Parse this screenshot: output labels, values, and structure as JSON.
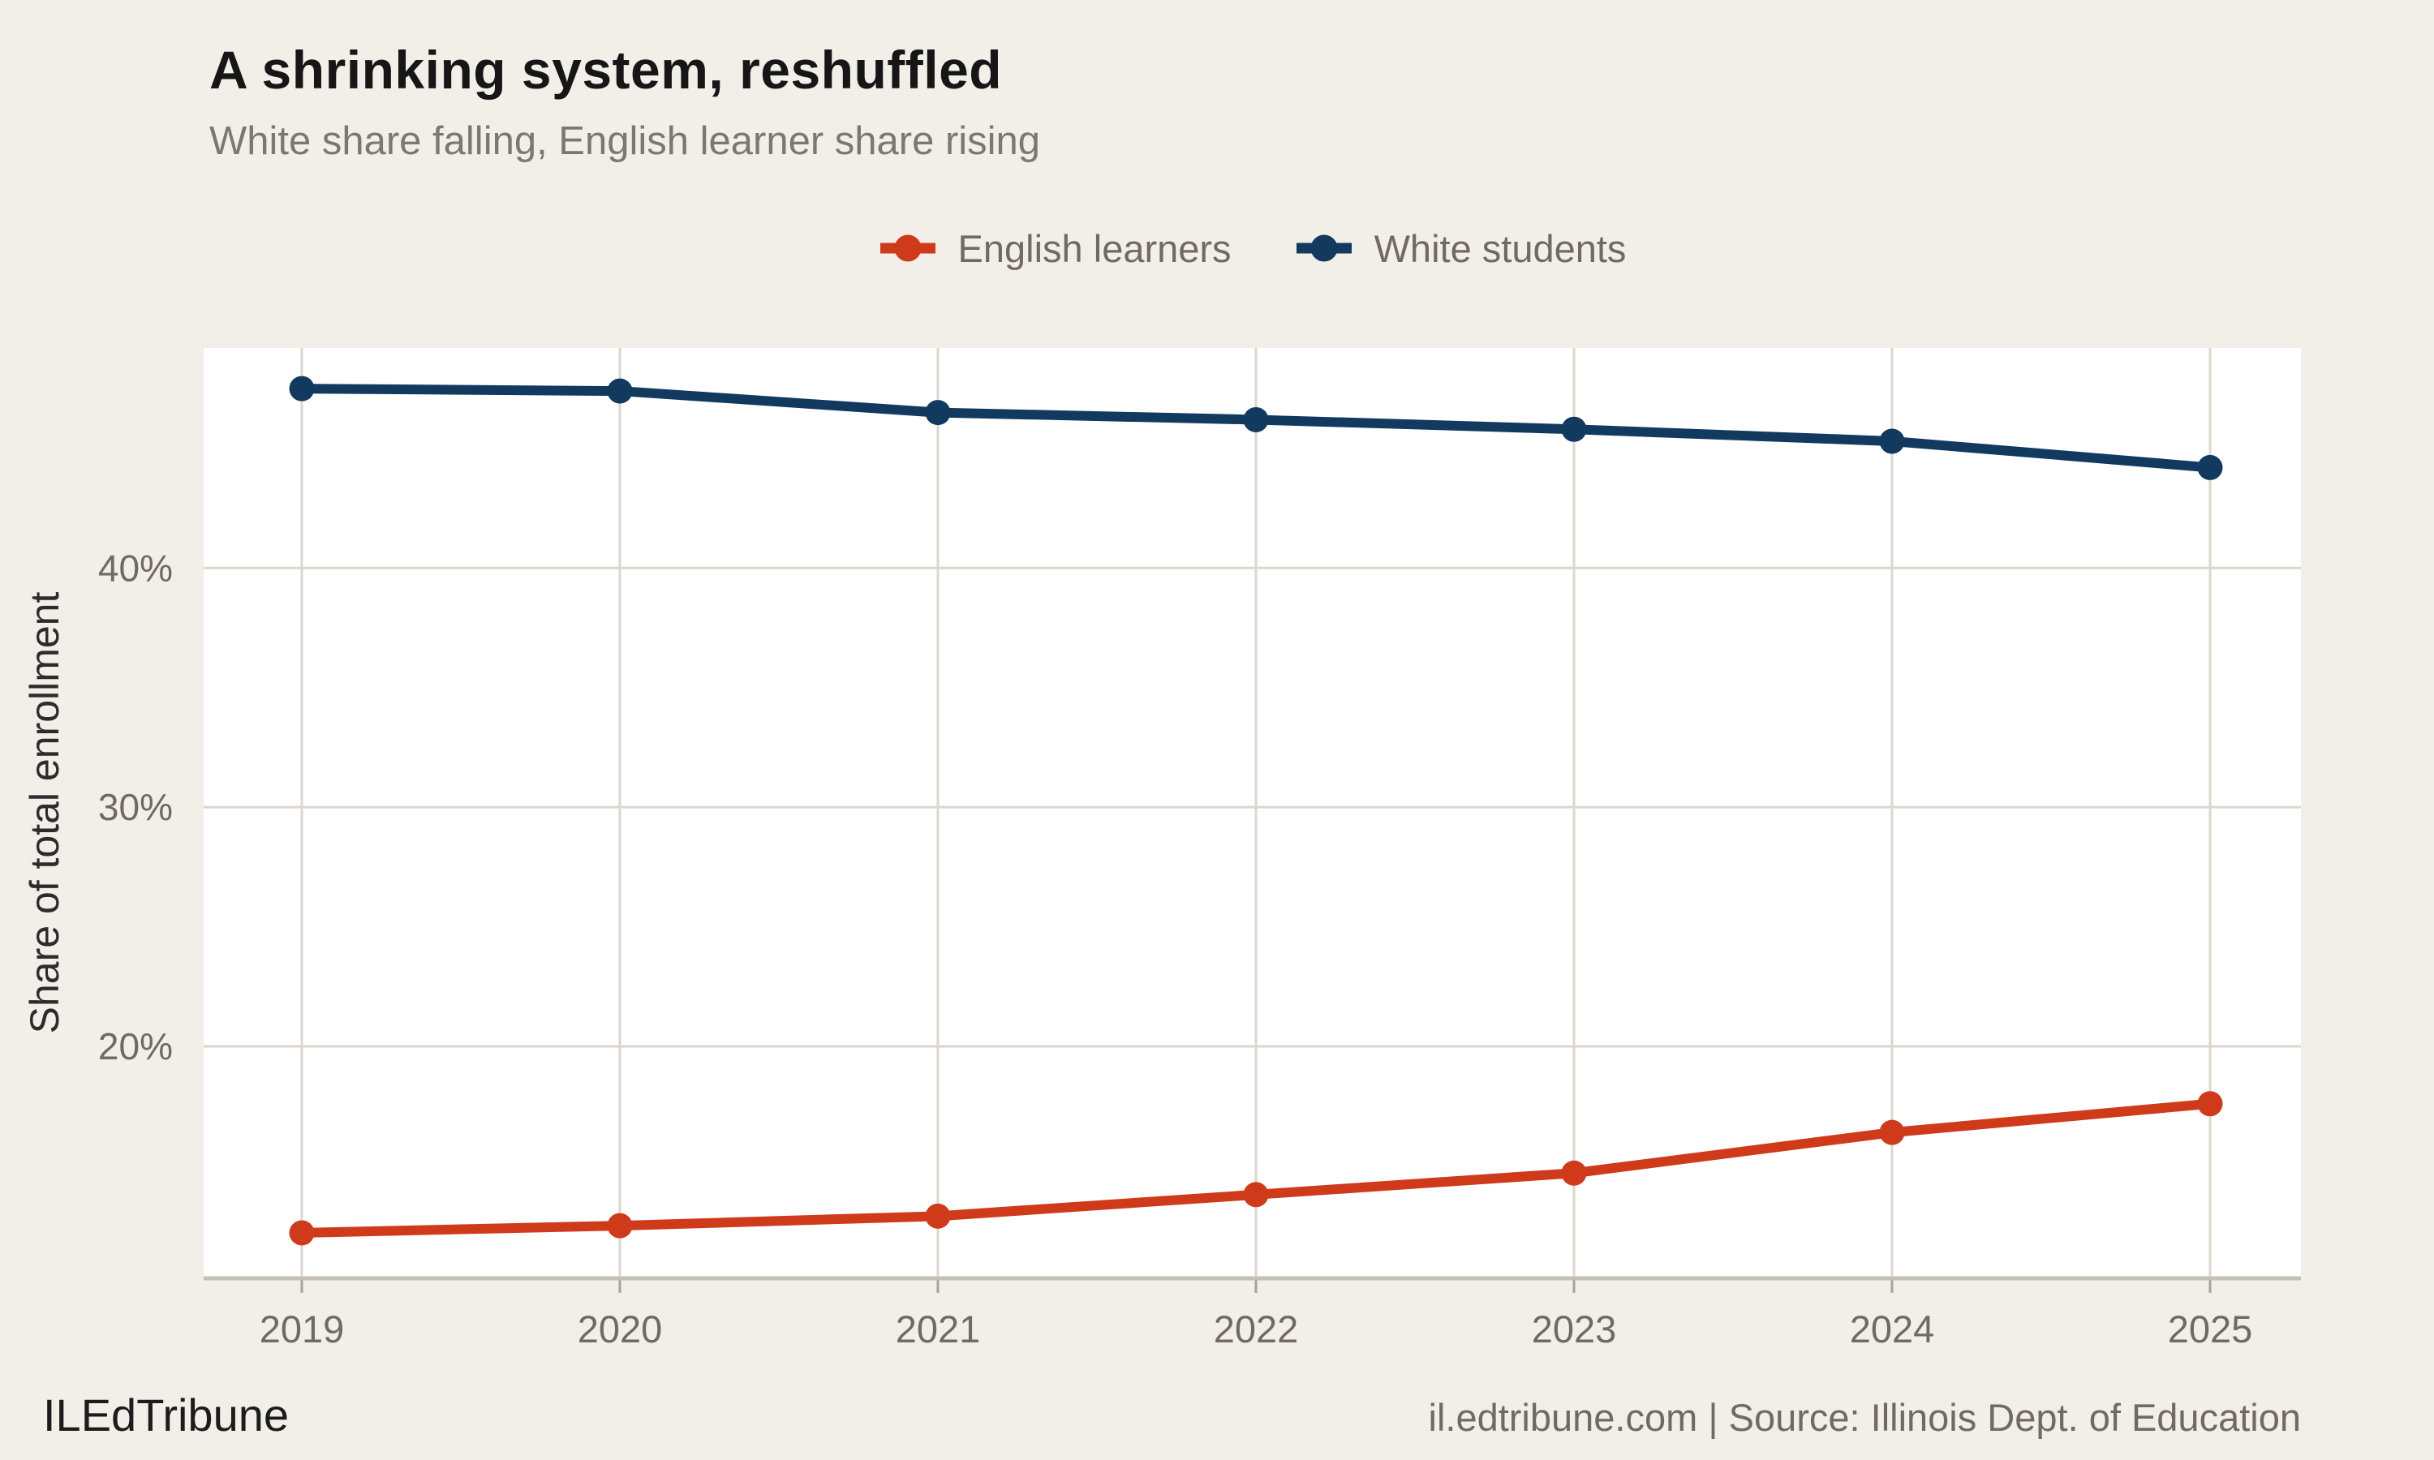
{
  "header": {
    "title": "A shrinking system, reshuffled",
    "subtitle": "White share falling, English learner share rising"
  },
  "chart_data": {
    "type": "line",
    "x": [
      2019,
      2020,
      2021,
      2022,
      2023,
      2024,
      2025
    ],
    "series": [
      {
        "name": "English learners",
        "color": "#cf3a1b",
        "values": [
          12.2,
          12.5,
          12.9,
          13.8,
          14.7,
          16.4,
          17.6
        ]
      },
      {
        "name": "White students",
        "color": "#123a5f",
        "values": [
          47.5,
          47.4,
          46.5,
          46.2,
          45.8,
          45.3,
          44.2
        ]
      }
    ],
    "title": "A shrinking system, reshuffled",
    "subtitle": "White share falling, English learner share rising",
    "xlabel": "",
    "ylabel": "Share of total enrollment",
    "ylim": [
      10.3,
      49.2
    ],
    "yticks": [
      {
        "value": 20,
        "label": "20%"
      },
      {
        "value": 30,
        "label": "30%"
      },
      {
        "value": 40,
        "label": "40%"
      }
    ],
    "xtick_labels": [
      "2019",
      "2020",
      "2021",
      "2022",
      "2023",
      "2024",
      "2025"
    ],
    "grid": true,
    "legend_position": "top-center"
  },
  "footer": {
    "brand": "ILEdTribune",
    "source": "il.edtribune.com | Source: Illinois Dept. of Education"
  },
  "colors": {
    "background": "#f2efe9",
    "plot_background": "#ffffff",
    "gridline": "#dcd7cd",
    "axis_line": "#c5bfb5",
    "tick_mark": "#a8a399",
    "tick_text": "#6f6b64",
    "accent_red": "#cf3a1b",
    "accent_navy": "#123a5f"
  }
}
